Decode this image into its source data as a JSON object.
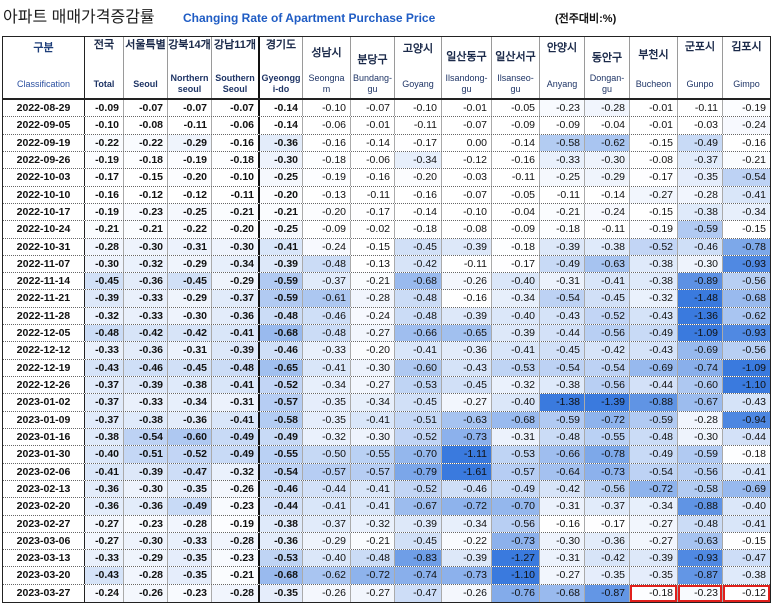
{
  "colors": {
    "heat_low": "#ffffff",
    "heat_high": "#3a7ade",
    "highlight": "#e0201c",
    "title_english": "#1f5cc4"
  },
  "chart_data": {
    "type": "table",
    "title": "아파트 매매가격증감률",
    "subtitle": "Changing Rate of Apartment Purchase Price",
    "unit": "(전주대비:%)",
    "row_header": {
      "ko": "구분",
      "en": "Classification"
    },
    "columns": [
      {
        "ko": "전국",
        "en": "Total"
      },
      {
        "ko": "서울특별",
        "en": "Seoul"
      },
      {
        "ko": "강북14개",
        "en": "Northern\nseoul"
      },
      {
        "ko": "강남11개",
        "en": "Southern\nSeoul"
      },
      {
        "ko": "경기도",
        "en": "Gyeongg\ni-do"
      },
      {
        "ko": "성남시",
        "en": "Seongna\nm"
      },
      {
        "ko": "분당구",
        "en": "Bundang-\ngu"
      },
      {
        "ko": "고양시",
        "en": "Goyang"
      },
      {
        "ko": "일산동구",
        "en": "Ilsandong-\ngu"
      },
      {
        "ko": "일산서구",
        "en": "Ilsanseo-\ngu"
      },
      {
        "ko": "안양시",
        "en": "Anyang"
      },
      {
        "ko": "동안구",
        "en": "Dongan-\ngu"
      },
      {
        "ko": "부천시",
        "en": "Bucheon"
      },
      {
        "ko": "군포시",
        "en": "Gunpo"
      },
      {
        "ko": "김포시",
        "en": "Gimpo"
      }
    ],
    "rows": [
      {
        "date": "2022-08-29",
        "values": [
          -0.09,
          -0.07,
          -0.07,
          -0.07,
          -0.14,
          -0.1,
          -0.07,
          -0.1,
          -0.01,
          -0.05,
          -0.23,
          -0.28,
          -0.01,
          -0.11,
          -0.19
        ]
      },
      {
        "date": "2022-09-05",
        "values": [
          -0.1,
          -0.08,
          -0.11,
          -0.06,
          -0.14,
          -0.06,
          -0.01,
          -0.11,
          -0.07,
          -0.09,
          -0.09,
          -0.04,
          -0.01,
          -0.03,
          -0.24
        ]
      },
      {
        "date": "2022-09-19",
        "values": [
          -0.22,
          -0.22,
          -0.29,
          -0.16,
          -0.36,
          -0.16,
          -0.14,
          -0.17,
          0.0,
          -0.14,
          -0.58,
          -0.62,
          -0.15,
          -0.49,
          -0.16
        ]
      },
      {
        "date": "2022-09-26",
        "values": [
          -0.19,
          -0.18,
          -0.19,
          -0.18,
          -0.3,
          -0.18,
          -0.06,
          -0.34,
          -0.12,
          -0.16,
          -0.33,
          -0.3,
          -0.08,
          -0.37,
          -0.21
        ]
      },
      {
        "date": "2022-10-03",
        "values": [
          -0.17,
          -0.15,
          -0.2,
          -0.1,
          -0.25,
          -0.19,
          -0.16,
          -0.2,
          -0.03,
          -0.11,
          -0.25,
          -0.29,
          -0.17,
          -0.35,
          -0.54
        ]
      },
      {
        "date": "2022-10-10",
        "values": [
          -0.16,
          -0.12,
          -0.12,
          -0.11,
          -0.2,
          -0.13,
          -0.11,
          -0.16,
          -0.07,
          -0.05,
          -0.11,
          -0.14,
          -0.27,
          -0.28,
          -0.41
        ]
      },
      {
        "date": "2022-10-17",
        "values": [
          -0.19,
          -0.23,
          -0.25,
          -0.21,
          -0.21,
          -0.2,
          -0.17,
          -0.14,
          -0.1,
          -0.04,
          -0.21,
          -0.24,
          -0.15,
          -0.38,
          -0.34
        ]
      },
      {
        "date": "2022-10-24",
        "values": [
          -0.21,
          -0.21,
          -0.22,
          -0.2,
          -0.25,
          -0.09,
          -0.02,
          -0.18,
          -0.08,
          -0.09,
          -0.18,
          -0.11,
          -0.19,
          -0.59,
          -0.15
        ]
      },
      {
        "date": "2022-10-31",
        "values": [
          -0.28,
          -0.3,
          -0.31,
          -0.3,
          -0.41,
          -0.24,
          -0.15,
          -0.45,
          -0.39,
          -0.18,
          -0.39,
          -0.38,
          -0.52,
          -0.46,
          -0.78
        ]
      },
      {
        "date": "2022-11-07",
        "values": [
          -0.3,
          -0.32,
          -0.29,
          -0.34,
          -0.39,
          -0.48,
          -0.13,
          -0.42,
          -0.11,
          -0.17,
          -0.49,
          -0.63,
          -0.38,
          -0.3,
          -0.93
        ]
      },
      {
        "date": "2022-11-14",
        "values": [
          -0.45,
          -0.36,
          -0.45,
          -0.29,
          -0.59,
          -0.37,
          -0.21,
          -0.68,
          -0.26,
          -0.4,
          -0.31,
          -0.41,
          -0.38,
          -0.89,
          -0.56
        ]
      },
      {
        "date": "2022-11-21",
        "values": [
          -0.39,
          -0.33,
          -0.29,
          -0.37,
          -0.59,
          -0.61,
          -0.28,
          -0.48,
          -0.16,
          -0.34,
          -0.54,
          -0.45,
          -0.32,
          -1.48,
          -0.68
        ]
      },
      {
        "date": "2022-11-28",
        "values": [
          -0.32,
          -0.33,
          -0.3,
          -0.36,
          -0.48,
          -0.46,
          -0.24,
          -0.48,
          -0.39,
          -0.4,
          -0.43,
          -0.52,
          -0.43,
          -1.36,
          -0.62
        ]
      },
      {
        "date": "2022-12-05",
        "values": [
          -0.48,
          -0.42,
          -0.42,
          -0.41,
          -0.68,
          -0.48,
          -0.27,
          -0.66,
          -0.65,
          -0.39,
          -0.44,
          -0.56,
          -0.49,
          -1.09,
          -0.93
        ]
      },
      {
        "date": "2022-12-12",
        "values": [
          -0.33,
          -0.36,
          -0.31,
          -0.39,
          -0.46,
          -0.33,
          -0.2,
          -0.41,
          -0.36,
          -0.41,
          -0.45,
          -0.42,
          -0.43,
          -0.69,
          -0.56
        ]
      },
      {
        "date": "2022-12-19",
        "values": [
          -0.43,
          -0.46,
          -0.45,
          -0.48,
          -0.65,
          -0.41,
          -0.3,
          -0.6,
          -0.43,
          -0.53,
          -0.54,
          -0.54,
          -0.69,
          -0.74,
          -1.09
        ]
      },
      {
        "date": "2022-12-26",
        "values": [
          -0.37,
          -0.39,
          -0.38,
          -0.41,
          -0.52,
          -0.34,
          -0.27,
          -0.53,
          -0.45,
          -0.32,
          -0.38,
          -0.56,
          -0.44,
          -0.6,
          -1.1
        ]
      },
      {
        "date": "2023-01-02",
        "values": [
          -0.37,
          -0.33,
          -0.34,
          -0.31,
          -0.57,
          -0.35,
          -0.34,
          -0.45,
          -0.27,
          -0.4,
          -1.38,
          -1.39,
          -0.88,
          -0.67,
          -0.43
        ]
      },
      {
        "date": "2023-01-09",
        "values": [
          -0.37,
          -0.38,
          -0.36,
          -0.41,
          -0.58,
          -0.35,
          -0.41,
          -0.51,
          -0.63,
          -0.68,
          -0.59,
          -0.72,
          -0.59,
          -0.28,
          -0.94
        ]
      },
      {
        "date": "2023-01-16",
        "values": [
          -0.38,
          -0.54,
          -0.6,
          -0.49,
          -0.49,
          -0.32,
          -0.3,
          -0.52,
          -0.73,
          -0.31,
          -0.48,
          -0.55,
          -0.48,
          -0.3,
          -0.44
        ]
      },
      {
        "date": "2023-01-30",
        "values": [
          -0.4,
          -0.51,
          -0.52,
          -0.49,
          -0.55,
          -0.5,
          -0.55,
          -0.7,
          -1.11,
          -0.53,
          -0.66,
          -0.78,
          -0.49,
          -0.59,
          -0.18
        ]
      },
      {
        "date": "2023-02-06",
        "values": [
          -0.41,
          -0.39,
          -0.47,
          -0.32,
          -0.54,
          -0.57,
          -0.57,
          -0.79,
          -1.61,
          -0.57,
          -0.64,
          -0.73,
          -0.54,
          -0.56,
          -0.41
        ]
      },
      {
        "date": "2023-02-13",
        "values": [
          -0.36,
          -0.3,
          -0.35,
          -0.26,
          -0.46,
          -0.44,
          -0.41,
          -0.52,
          -0.46,
          -0.49,
          -0.42,
          -0.56,
          -0.72,
          -0.58,
          -0.69
        ]
      },
      {
        "date": "2023-02-20",
        "values": [
          -0.36,
          -0.36,
          -0.49,
          -0.23,
          -0.44,
          -0.41,
          -0.41,
          -0.67,
          -0.72,
          -0.7,
          -0.31,
          -0.37,
          -0.34,
          -0.88,
          -0.4
        ]
      },
      {
        "date": "2023-02-27",
        "values": [
          -0.27,
          -0.23,
          -0.28,
          -0.19,
          -0.38,
          -0.37,
          -0.32,
          -0.39,
          -0.34,
          -0.56,
          -0.16,
          -0.17,
          -0.27,
          -0.48,
          -0.41
        ]
      },
      {
        "date": "2023-03-06",
        "values": [
          -0.27,
          -0.3,
          -0.33,
          -0.28,
          -0.36,
          -0.29,
          -0.21,
          -0.45,
          -0.22,
          -0.73,
          -0.3,
          -0.36,
          -0.27,
          -0.63,
          -0.15
        ]
      },
      {
        "date": "2023-03-13",
        "values": [
          -0.33,
          -0.29,
          -0.35,
          -0.23,
          -0.53,
          -0.4,
          -0.48,
          -0.83,
          -0.39,
          -1.27,
          -0.31,
          -0.42,
          -0.39,
          -0.93,
          -0.47
        ]
      },
      {
        "date": "2023-03-20",
        "values": [
          -0.43,
          -0.28,
          -0.35,
          -0.21,
          -0.68,
          -0.62,
          -0.72,
          -0.74,
          -0.73,
          -1.1,
          -0.27,
          -0.35,
          -0.35,
          -0.87,
          -0.38
        ]
      },
      {
        "date": "2023-03-27",
        "values": [
          -0.24,
          -0.26,
          -0.23,
          -0.28,
          -0.35,
          -0.26,
          -0.27,
          -0.47,
          -0.26,
          -0.76,
          -0.68,
          -0.87,
          -0.18,
          -0.23,
          -0.12
        ]
      }
    ],
    "highlighted_cells": [
      {
        "date": "2023-03-27",
        "column": "Bucheon"
      },
      {
        "date": "2023-03-27",
        "column": "Gunpo"
      },
      {
        "date": "2023-03-27",
        "column": "Gimpo"
      }
    ]
  }
}
